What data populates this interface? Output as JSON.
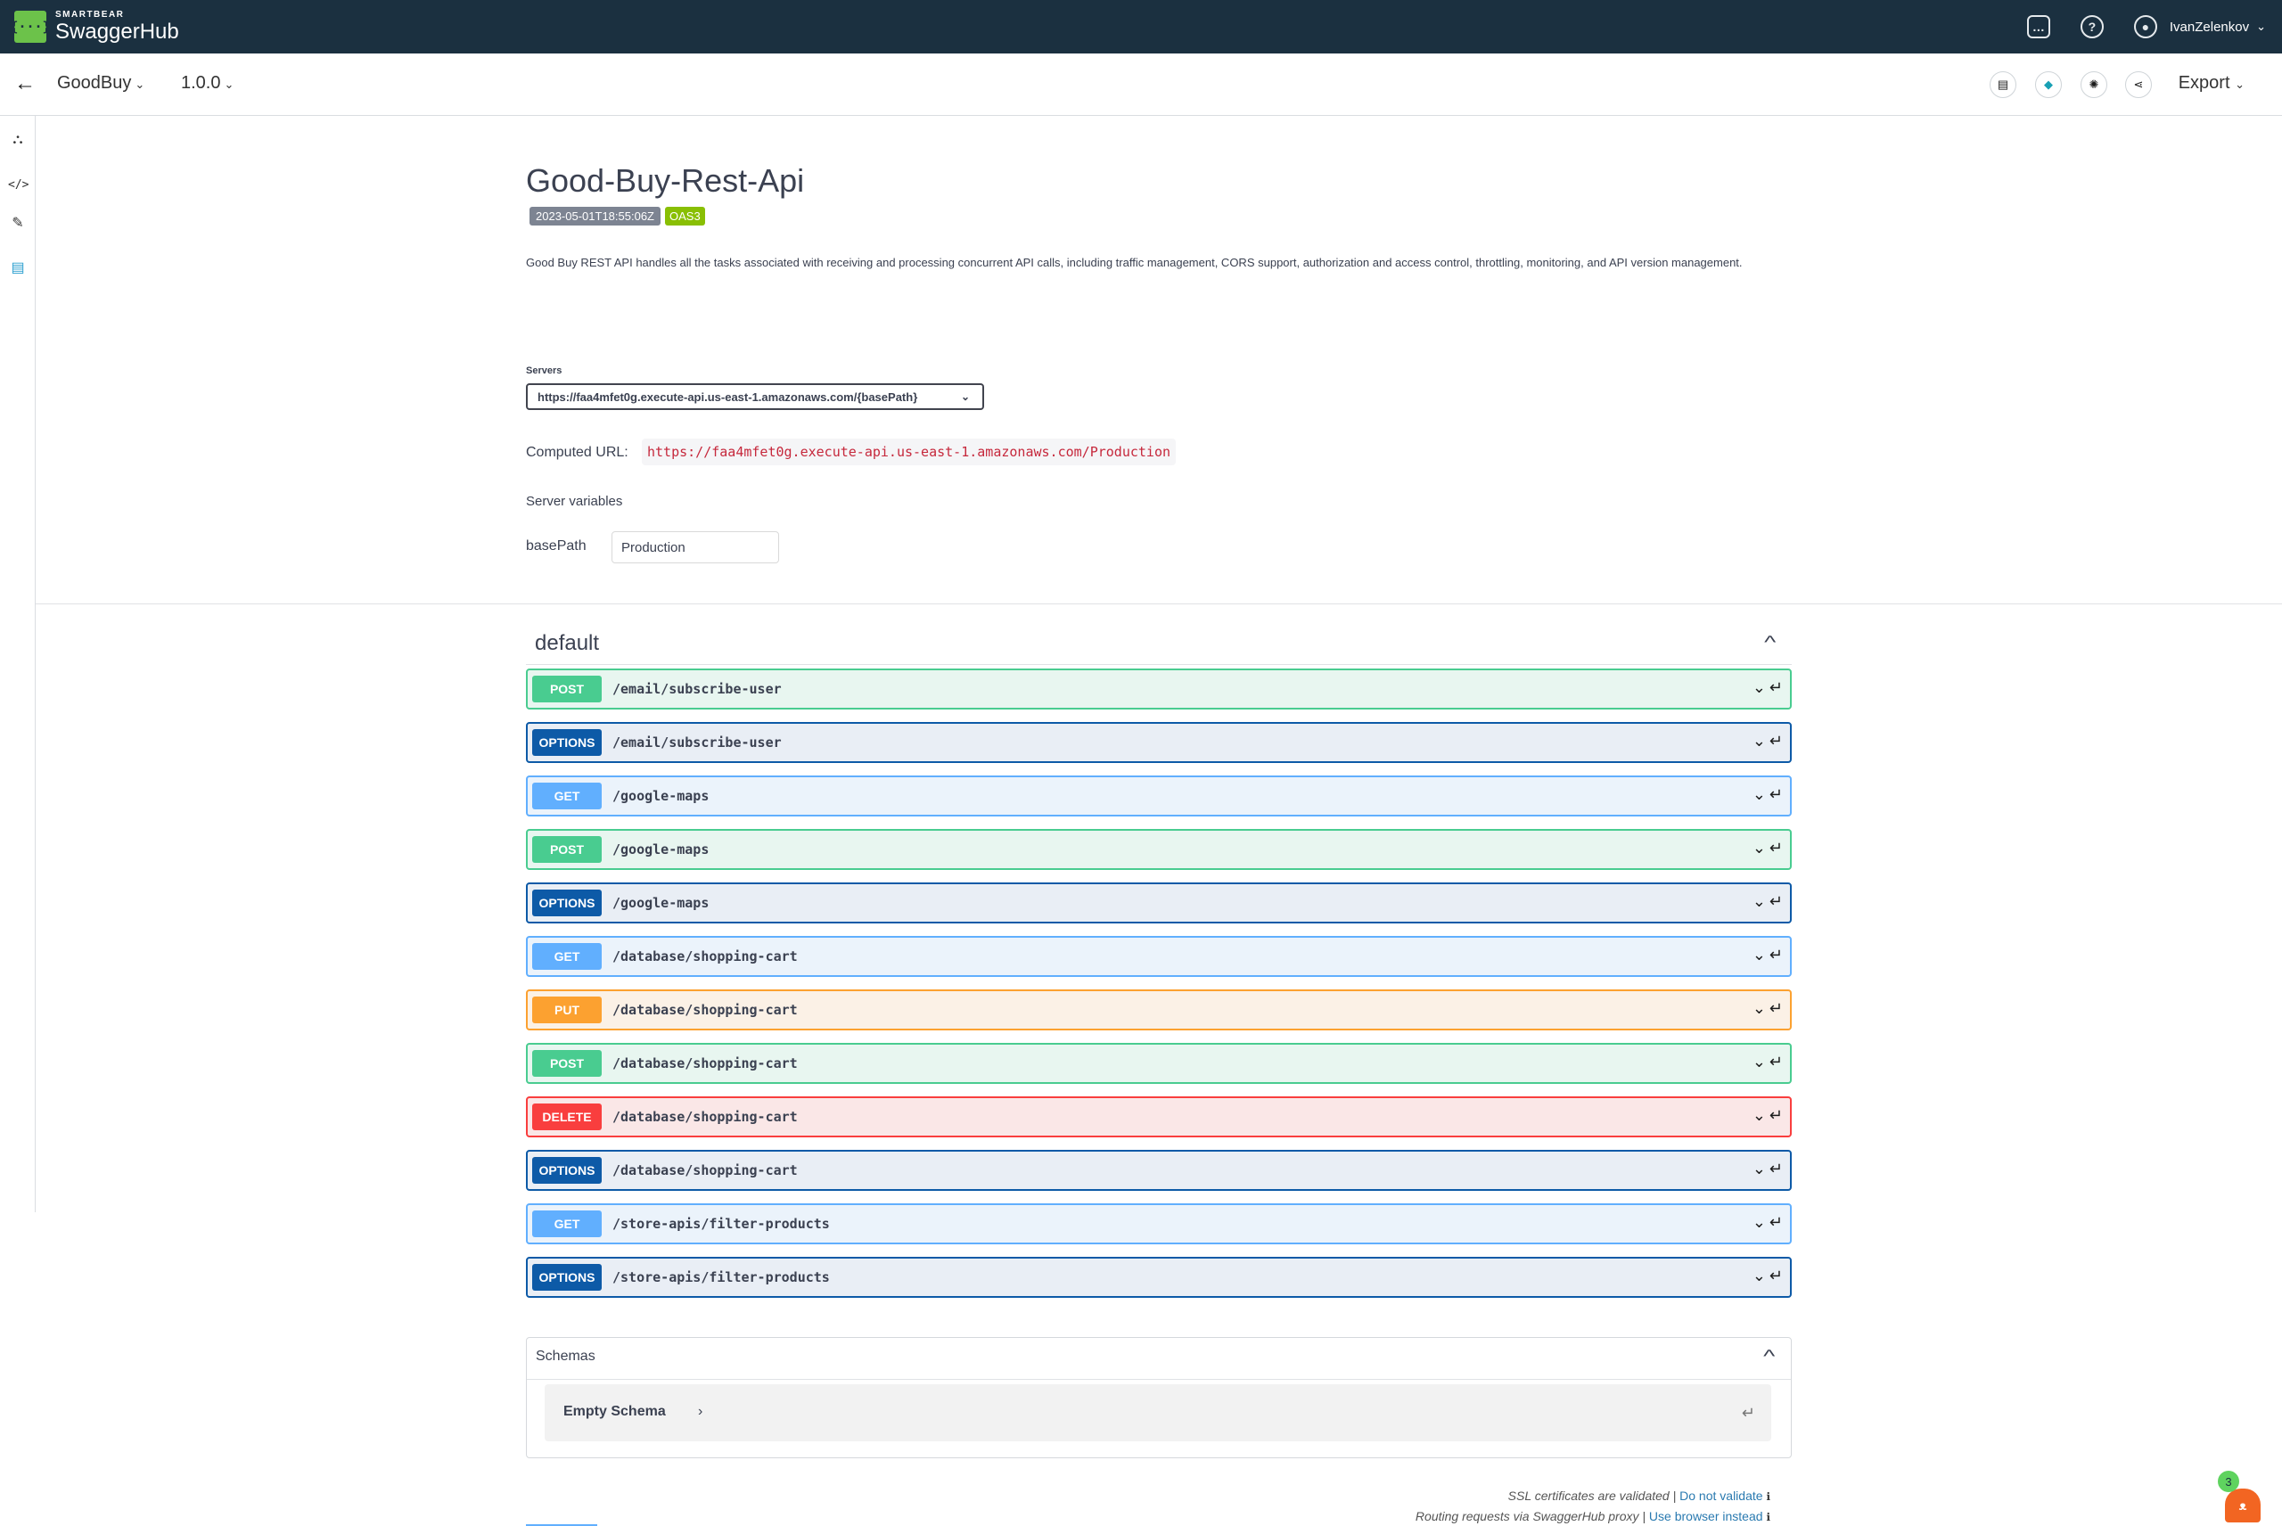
{
  "header": {
    "logo_small": "SMARTBEAR",
    "logo_big": "SwaggerHub",
    "logo_mark": "{···}",
    "username": "IvanZelenkov"
  },
  "toolbar": {
    "back_icon": "back-arrow-icon",
    "project": "GoodBuy",
    "version": "1.0.0",
    "export_label": "Export"
  },
  "api": {
    "title": "Good-Buy-Rest-Api",
    "date_badge": "2023-05-01T18:55:06Z",
    "oas_badge": "OAS3",
    "description": "Good Buy REST API handles all the tasks associated with receiving and processing concurrent API calls, including traffic management, CORS support, authorization and access control, throttling, monitoring, and API version management."
  },
  "servers": {
    "label": "Servers",
    "selected": "https://faa4mfet0g.execute-api.us-east-1.amazonaws.com/{basePath}",
    "computed_label": "Computed URL:",
    "computed_url": "https://faa4mfet0g.execute-api.us-east-1.amazonaws.com/Production",
    "variables_label": "Server variables",
    "basepath_label": "basePath",
    "basepath_value": "Production"
  },
  "section": {
    "title": "default"
  },
  "operations": [
    {
      "method": "POST",
      "path": "/email/subscribe-user"
    },
    {
      "method": "OPTIONS",
      "path": "/email/subscribe-user"
    },
    {
      "method": "GET",
      "path": "/google-maps"
    },
    {
      "method": "POST",
      "path": "/google-maps"
    },
    {
      "method": "OPTIONS",
      "path": "/google-maps"
    },
    {
      "method": "GET",
      "path": "/database/shopping-cart"
    },
    {
      "method": "PUT",
      "path": "/database/shopping-cart"
    },
    {
      "method": "POST",
      "path": "/database/shopping-cart"
    },
    {
      "method": "DELETE",
      "path": "/database/shopping-cart"
    },
    {
      "method": "OPTIONS",
      "path": "/database/shopping-cart"
    },
    {
      "method": "GET",
      "path": "/store-apis/filter-products"
    },
    {
      "method": "OPTIONS",
      "path": "/store-apis/filter-products"
    }
  ],
  "schemas": {
    "title": "Schemas",
    "item": "Empty Schema"
  },
  "footer": {
    "ssl_text": "SSL certificates are validated |",
    "ssl_link": "Do not validate",
    "proxy_text": "Routing requests via SwaggerHub proxy |",
    "proxy_link": "Use browser instead"
  },
  "helper": {
    "count": "3"
  },
  "colors": {
    "header_bg": "#1b3040",
    "post": "#49cc90",
    "options": "#0d5aa7",
    "get": "#61affe",
    "put": "#fca130",
    "delete": "#f93e3e"
  }
}
